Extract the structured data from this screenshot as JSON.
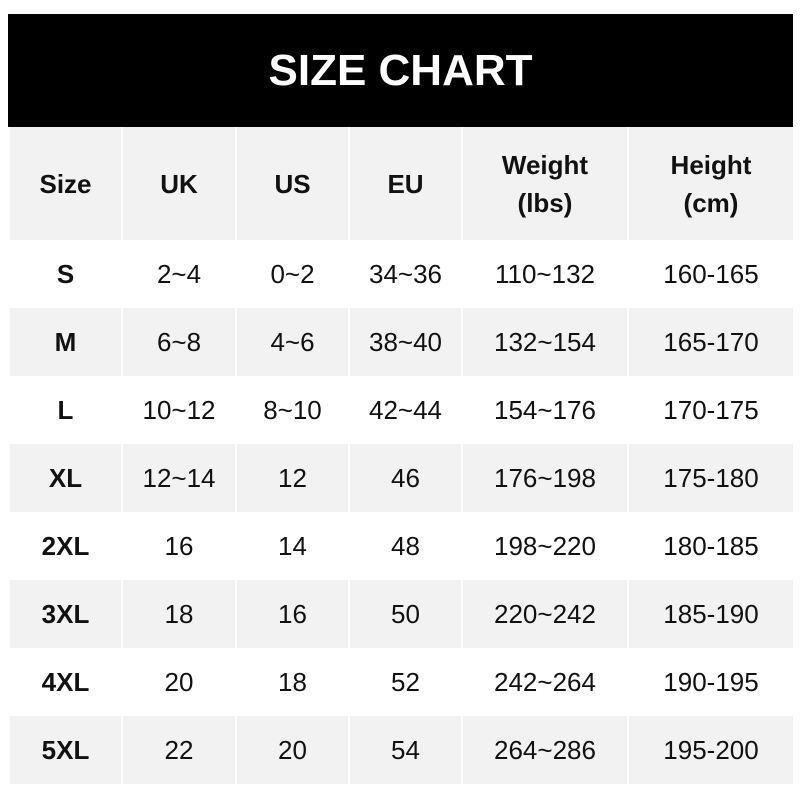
{
  "title": "SIZE CHART",
  "headers": [
    "Size",
    "UK",
    "US",
    "EU",
    "Weight\n(lbs)",
    "Height\n(cm)"
  ],
  "rows": [
    [
      "S",
      "2~4",
      "0~2",
      "34~36",
      "110~132",
      "160-165"
    ],
    [
      "M",
      "6~8",
      "4~6",
      "38~40",
      "132~154",
      "165-170"
    ],
    [
      "L",
      "10~12",
      "8~10",
      "42~44",
      "154~176",
      "170-175"
    ],
    [
      "XL",
      "12~14",
      "12",
      "46",
      "176~198",
      "175-180"
    ],
    [
      "2XL",
      "16",
      "14",
      "48",
      "198~220",
      "180-185"
    ],
    [
      "3XL",
      "18",
      "16",
      "50",
      "220~242",
      "185-190"
    ],
    [
      "4XL",
      "20",
      "18",
      "52",
      "242~264",
      "190-195"
    ],
    [
      "5XL",
      "22",
      "20",
      "54",
      "264~286",
      "195-200"
    ]
  ],
  "colors": {
    "title_bg": "#000000",
    "header_bg": "#f2f2f2",
    "stripe": "#f2f2f2"
  }
}
